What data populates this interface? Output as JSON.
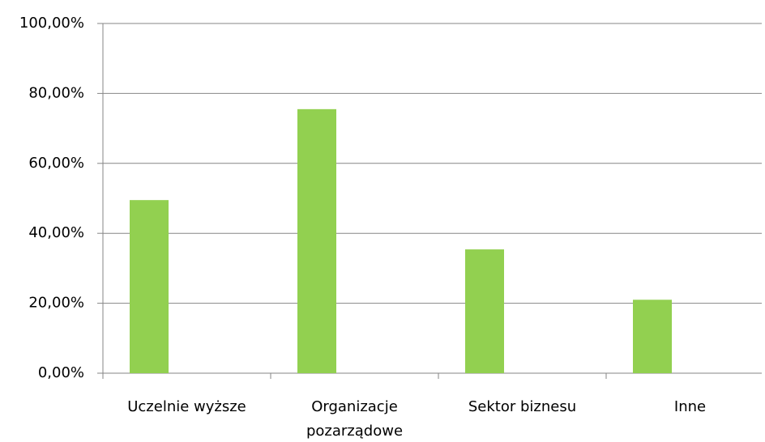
{
  "chart_data": {
    "type": "bar",
    "categories": [
      "Uczelnie wyższe",
      "Organizacje pozarządowe",
      "Sektor biznesu",
      "Inne"
    ],
    "values": [
      49.5,
      75.5,
      35.4,
      21
    ],
    "color": "#92d050",
    "ylim": [
      0,
      100
    ],
    "yticks": [
      {
        "value": 0,
        "label": "0,00%"
      },
      {
        "value": 20,
        "label": "20,00%"
      },
      {
        "value": 40,
        "label": "40,00%"
      },
      {
        "value": 60,
        "label": "60,00%"
      },
      {
        "value": 80,
        "label": "80,00%"
      },
      {
        "value": 100,
        "label": "100,00%"
      }
    ],
    "grid": true
  }
}
